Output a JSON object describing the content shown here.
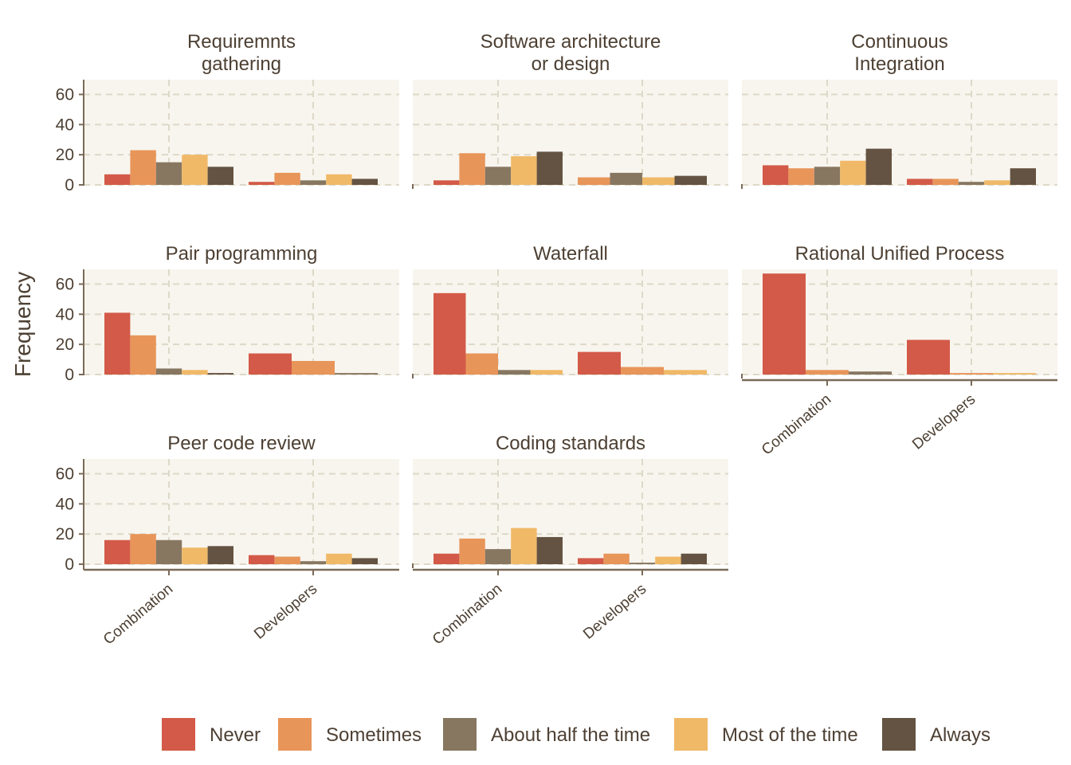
{
  "chart_data": {
    "type": "bar",
    "ylabel": "Frequency",
    "xlabel": "",
    "ylim": [
      0,
      70
    ],
    "y_ticks": [
      0,
      20,
      40,
      60
    ],
    "categories": [
      "Combination",
      "Developers"
    ],
    "legend": {
      "position": "bottom",
      "entries": [
        {
          "name": "Never",
          "color": "#d35a48"
        },
        {
          "name": "Sometimes",
          "color": "#e8955a"
        },
        {
          "name": "About half the time",
          "color": "#877761"
        },
        {
          "name": "Most of the time",
          "color": "#f0b968"
        },
        {
          "name": "Always",
          "color": "#645342"
        }
      ]
    },
    "facets": [
      {
        "title_lines": [
          "Requiremnts",
          "gathering"
        ],
        "series": [
          {
            "name": "Never",
            "values": [
              7,
              2
            ]
          },
          {
            "name": "Sometimes",
            "values": [
              23,
              8
            ]
          },
          {
            "name": "About half the time",
            "values": [
              15,
              3
            ]
          },
          {
            "name": "Most of the time",
            "values": [
              20,
              7
            ]
          },
          {
            "name": "Always",
            "values": [
              12,
              4
            ]
          }
        ]
      },
      {
        "title_lines": [
          "Software architecture",
          "or design"
        ],
        "series": [
          {
            "name": "Never",
            "values": [
              3,
              null
            ]
          },
          {
            "name": "Sometimes",
            "values": [
              21,
              5
            ]
          },
          {
            "name": "About half the time",
            "values": [
              12,
              8
            ]
          },
          {
            "name": "Most of the time",
            "values": [
              19,
              5
            ]
          },
          {
            "name": "Always",
            "values": [
              22,
              6
            ]
          }
        ]
      },
      {
        "title_lines": [
          "Continuous",
          "Integration"
        ],
        "series": [
          {
            "name": "Never",
            "values": [
              13,
              4
            ]
          },
          {
            "name": "Sometimes",
            "values": [
              11,
              4
            ]
          },
          {
            "name": "About half the time",
            "values": [
              12,
              2
            ]
          },
          {
            "name": "Most of the time",
            "values": [
              16,
              3
            ]
          },
          {
            "name": "Always",
            "values": [
              24,
              11
            ]
          }
        ]
      },
      {
        "title_lines": [
          "Pair programming"
        ],
        "series": [
          {
            "name": "Never",
            "values": [
              41,
              14
            ]
          },
          {
            "name": "Sometimes",
            "values": [
              26,
              9
            ]
          },
          {
            "name": "About half the time",
            "values": [
              4,
              1
            ]
          },
          {
            "name": "Most of the time",
            "values": [
              3,
              null
            ]
          },
          {
            "name": "Always",
            "values": [
              1,
              null
            ]
          }
        ]
      },
      {
        "title_lines": [
          "Waterfall"
        ],
        "series": [
          {
            "name": "Never",
            "values": [
              54,
              15
            ]
          },
          {
            "name": "Sometimes",
            "values": [
              14,
              5
            ]
          },
          {
            "name": "Most of the time",
            "values": [
              3,
              3
            ]
          },
          {
            "name": "About half the time",
            "values": [
              3,
              null
            ]
          }
        ]
      },
      {
        "title_lines": [
          "Rational Unified Process"
        ],
        "series": [
          {
            "name": "Never",
            "values": [
              67,
              23
            ]
          },
          {
            "name": "Sometimes",
            "values": [
              3,
              1
            ]
          },
          {
            "name": "About half the time",
            "values": [
              2,
              null
            ]
          },
          {
            "name": "Most of the time",
            "values": [
              null,
              1
            ]
          }
        ]
      },
      {
        "title_lines": [
          "Peer code review"
        ],
        "series": [
          {
            "name": "Never",
            "values": [
              16,
              6
            ]
          },
          {
            "name": "Sometimes",
            "values": [
              20,
              5
            ]
          },
          {
            "name": "About half the time",
            "values": [
              16,
              2
            ]
          },
          {
            "name": "Most of the time",
            "values": [
              11,
              7
            ]
          },
          {
            "name": "Always",
            "values": [
              12,
              4
            ]
          }
        ]
      },
      {
        "title_lines": [
          "Coding standards"
        ],
        "series": [
          {
            "name": "Never",
            "values": [
              7,
              4
            ]
          },
          {
            "name": "Sometimes",
            "values": [
              17,
              7
            ]
          },
          {
            "name": "About half the time",
            "values": [
              10,
              1
            ]
          },
          {
            "name": "Most of the time",
            "values": [
              24,
              5
            ]
          },
          {
            "name": "Always",
            "values": [
              18,
              7
            ]
          }
        ]
      }
    ]
  }
}
